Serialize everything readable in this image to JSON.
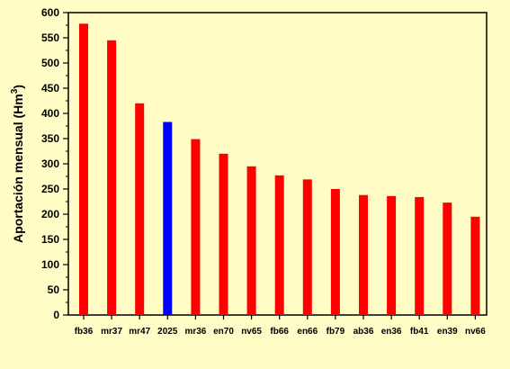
{
  "chart_data": {
    "type": "bar",
    "title": "",
    "xlabel": "",
    "ylabel": "Aportación mensual (Hm",
    "ylabel_superscript": "3",
    "ylabel_close": ")",
    "ylim": [
      0,
      600
    ],
    "yticks": [
      "0",
      "50",
      "100",
      "150",
      "200",
      "250",
      "300",
      "350",
      "400",
      "450",
      "500",
      "550",
      "600"
    ],
    "grid": false,
    "legend": "none",
    "categories": [
      "fb36",
      "mr37",
      "mr47",
      "2025",
      "mr36",
      "en70",
      "nv65",
      "fb66",
      "en66",
      "fb79",
      "ab36",
      "en36",
      "fb41",
      "en39",
      "nv66"
    ],
    "values": [
      578,
      545,
      420,
      383,
      349,
      320,
      295,
      277,
      269,
      250,
      238,
      236,
      234,
      223,
      195
    ],
    "highlight_category": "2025",
    "colors": {
      "bar": "#ff0000",
      "highlight": "#0000ff",
      "background": "#fffcc6",
      "axis": "#000000"
    }
  }
}
